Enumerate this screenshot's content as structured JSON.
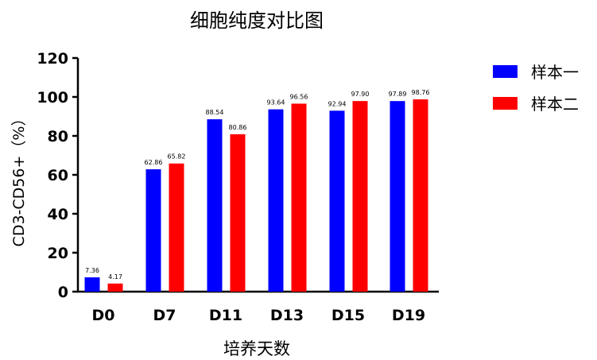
{
  "chart_data": {
    "type": "bar",
    "title": "细胞纯度对比图",
    "xlabel": "培养天数",
    "ylabel": "CD3-CD56+（%）",
    "categories": [
      "D0",
      "D7",
      "D11",
      "D13",
      "D15",
      "D19"
    ],
    "series": [
      {
        "name": "样本一",
        "color": "#0000ff",
        "values": [
          7.36,
          62.86,
          88.54,
          93.64,
          92.94,
          97.89
        ],
        "labels": [
          "7.36",
          "62.86",
          "88.54",
          "93.64",
          "92.94",
          "97.89"
        ]
      },
      {
        "name": "样本二",
        "color": "#ff0000",
        "values": [
          4.17,
          65.82,
          80.86,
          96.56,
          97.9,
          98.76
        ],
        "labels": [
          "4.17",
          "65.82",
          "80.86",
          "96.56",
          "97.90",
          "98.76"
        ]
      }
    ],
    "ylim": [
      0,
      120
    ],
    "yticks": [
      0,
      20,
      40,
      60,
      80,
      100,
      120
    ],
    "grid": false,
    "legend": "right"
  }
}
